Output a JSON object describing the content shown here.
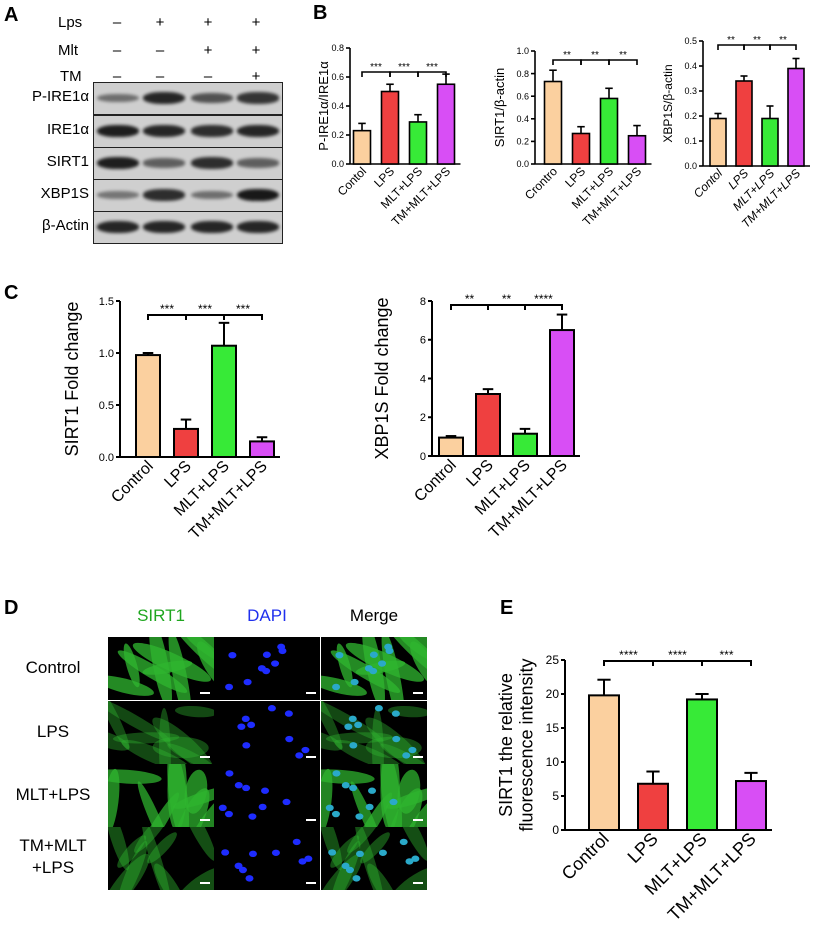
{
  "panels": {
    "A": "A",
    "B": "B",
    "C": "C",
    "D": "D",
    "E": "E"
  },
  "panelA": {
    "treatments": [
      {
        "name": "Lps",
        "marks": [
          "–",
          "+",
          "+",
          "+"
        ]
      },
      {
        "name": "Mlt",
        "marks": [
          "–",
          "–",
          "+",
          "+"
        ]
      },
      {
        "name": "TM",
        "marks": [
          "–",
          "–",
          "–",
          "+"
        ]
      }
    ],
    "blots": [
      {
        "label": "P-IRE1α",
        "intensity": [
          0.35,
          0.85,
          0.55,
          0.75
        ]
      },
      {
        "label": "IRE1α",
        "intensity": [
          0.9,
          0.85,
          0.8,
          0.85
        ]
      },
      {
        "label": "SIRT1",
        "intensity": [
          0.9,
          0.45,
          0.8,
          0.45
        ]
      },
      {
        "label": "XBP1S",
        "intensity": [
          0.3,
          0.8,
          0.35,
          0.95
        ]
      },
      {
        "label": "β-Actin",
        "intensity": [
          0.85,
          0.85,
          0.85,
          0.85
        ]
      }
    ]
  },
  "colors": {
    "control": "#fbd09f",
    "lps": "#ef4040",
    "mlt_lps": "#37ea37",
    "tm_mlt_lps": "#d84ef5"
  },
  "chart_data": [
    {
      "id": "B1",
      "type": "bar",
      "categories": [
        "Contol",
        "LPS",
        "MLT+LPS",
        "TM+MLT+LPS"
      ],
      "values": [
        0.23,
        0.5,
        0.29,
        0.55
      ],
      "errors": [
        0.05,
        0.05,
        0.05,
        0.07
      ],
      "ylabel": "P-IRE1α/IRE1α",
      "ylim": [
        0,
        0.8
      ],
      "yticks": [
        "0.0",
        "0.2",
        "0.4",
        "0.6",
        "0.8"
      ],
      "sig": [
        "***",
        "***",
        "***"
      ],
      "label_style": "normal"
    },
    {
      "id": "B2",
      "type": "bar",
      "categories": [
        "Crontro",
        "LPS",
        "MLT+LPS",
        "TM+MLT+LPS"
      ],
      "values": [
        0.73,
        0.27,
        0.58,
        0.25
      ],
      "errors": [
        0.1,
        0.06,
        0.09,
        0.09
      ],
      "ylabel": "SIRT1/β-actin",
      "ylim": [
        0,
        1.0
      ],
      "yticks": [
        "0.0",
        "0.2",
        "0.4",
        "0.6",
        "0.8",
        "1.0"
      ],
      "sig": [
        "**",
        "**",
        "**"
      ],
      "label_style": "normal"
    },
    {
      "id": "B3",
      "type": "bar",
      "categories": [
        "Contol",
        "LPS",
        "MLT+LPS",
        "TM+MLT+LPS"
      ],
      "values": [
        0.19,
        0.34,
        0.19,
        0.39
      ],
      "errors": [
        0.02,
        0.02,
        0.05,
        0.04
      ],
      "ylabel": "XBP1S/β-actin",
      "ylim": [
        0,
        0.5
      ],
      "yticks": [
        "0.0",
        "0.1",
        "0.2",
        "0.3",
        "0.4",
        "0.5"
      ],
      "sig": [
        "**",
        "**",
        "**"
      ],
      "label_style": "italic"
    },
    {
      "id": "C1",
      "type": "bar",
      "categories": [
        "Control",
        "LPS",
        "MLT+LPS",
        "TM+MLT+LPS"
      ],
      "values": [
        0.98,
        0.27,
        1.07,
        0.15
      ],
      "errors": [
        0.02,
        0.09,
        0.22,
        0.04
      ],
      "ylabel": "SIRT1 Fold change",
      "ylim": [
        0,
        1.5
      ],
      "yticks": [
        "0.0",
        "0.5",
        "1.0",
        "1.5"
      ],
      "sig": [
        "***",
        "***",
        "***"
      ],
      "label_style": "normal"
    },
    {
      "id": "C2",
      "type": "bar",
      "categories": [
        "Control",
        "LPS",
        "MLT+LPS",
        "TM+MLT+LPS"
      ],
      "values": [
        0.95,
        3.2,
        1.15,
        6.5
      ],
      "errors": [
        0.08,
        0.25,
        0.25,
        0.8
      ],
      "ylabel": "XBP1S Fold change",
      "ylim": [
        0,
        8
      ],
      "yticks": [
        "0",
        "2",
        "4",
        "6",
        "8"
      ],
      "sig": [
        "**",
        "**",
        "****"
      ],
      "label_style": "normal"
    },
    {
      "id": "E",
      "type": "bar",
      "categories": [
        "Control",
        "LPS",
        "MLT+LPS",
        "TM+MLT+LPS"
      ],
      "values": [
        19.8,
        6.8,
        19.2,
        7.2
      ],
      "errors": [
        2.3,
        1.8,
        0.8,
        1.2
      ],
      "ylabel": "SIRT1 the relative fluorescence intensity",
      "ylim": [
        0,
        25
      ],
      "yticks": [
        "0",
        "5",
        "10",
        "15",
        "20",
        "25"
      ],
      "sig": [
        "****",
        "****",
        "***"
      ],
      "label_style": "normal"
    }
  ],
  "panelD": {
    "columns": [
      {
        "label": "SIRT1",
        "color": "#1fa61f"
      },
      {
        "label": "DAPI",
        "color": "#2030ee"
      },
      {
        "label": "Merge",
        "color": "#000000"
      }
    ],
    "rows": [
      {
        "label": "Control",
        "green": 0.85
      },
      {
        "label": "LPS",
        "green": 0.25
      },
      {
        "label": "MLT+LPS",
        "green": 0.8
      },
      {
        "label": "TM+MLT\n+LPS",
        "green": 0.3
      }
    ]
  }
}
